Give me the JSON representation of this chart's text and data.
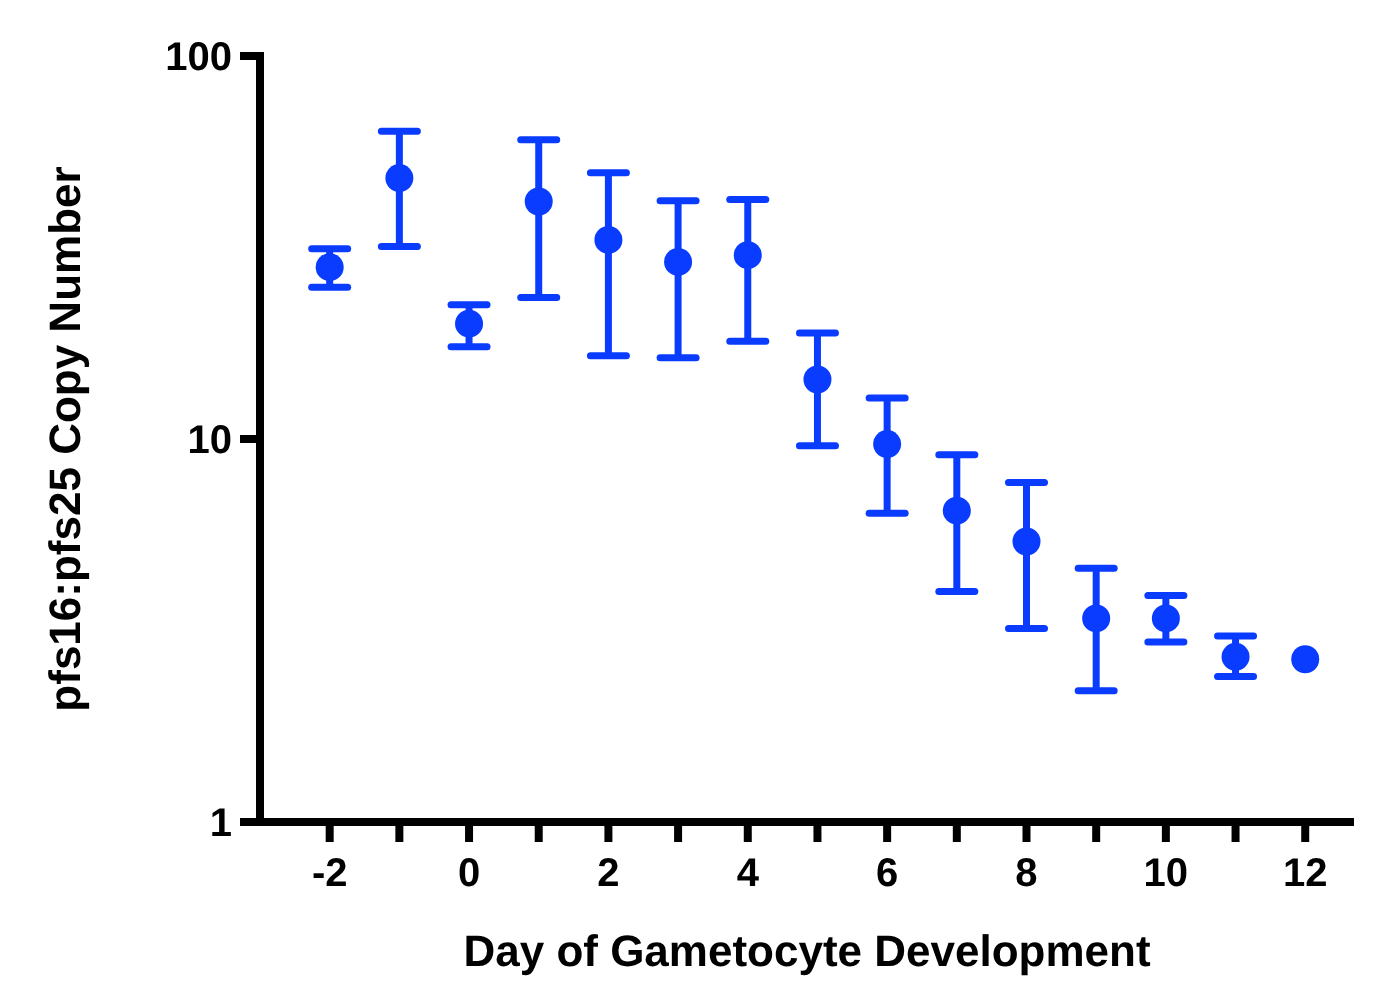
{
  "chart_data": {
    "type": "scatter",
    "xlabel": "Day of Gametocyte Development",
    "ylabel": "pfs16:pfs25 Copy Number",
    "x": [
      -2,
      -1,
      0,
      1,
      2,
      3,
      4,
      5,
      6,
      7,
      8,
      9,
      10,
      11,
      12
    ],
    "series": [
      {
        "color": "#0a3cff",
        "values": [
          28.1,
          48.0,
          20.0,
          41.7,
          33.1,
          29.0,
          30.2,
          14.3,
          9.7,
          6.5,
          5.4,
          3.4,
          3.4,
          2.7,
          2.66
        ],
        "errors": [
          [
            24.9,
            31.4
          ],
          [
            31.8,
            63.6
          ],
          [
            17.4,
            22.4
          ],
          [
            23.4,
            60.4
          ],
          [
            16.5,
            49.6
          ],
          [
            16.3,
            41.9
          ],
          [
            18.0,
            42.2
          ],
          [
            9.6,
            18.9
          ],
          [
            6.4,
            12.8
          ],
          [
            4.0,
            9.1
          ],
          [
            3.2,
            7.7
          ],
          [
            2.2,
            4.6
          ],
          [
            2.95,
            3.9
          ],
          [
            2.4,
            3.06
          ],
          null
        ]
      }
    ],
    "marker": "circle",
    "log": "y",
    "grid": false,
    "xlim": [
      -3,
      12.7
    ],
    "ylim": [
      1,
      100
    ],
    "yticks": [
      1,
      10,
      100
    ],
    "xticks": [
      -2,
      {
        "value": -1,
        "label": null
      },
      0,
      {
        "value": 1,
        "label": null
      },
      2,
      {
        "value": 3,
        "label": null
      },
      4,
      {
        "value": 5,
        "label": null
      },
      6,
      {
        "value": 7,
        "label": null
      },
      8,
      {
        "value": 9,
        "label": null
      },
      10,
      {
        "value": 11,
        "label": null
      },
      12
    ]
  }
}
